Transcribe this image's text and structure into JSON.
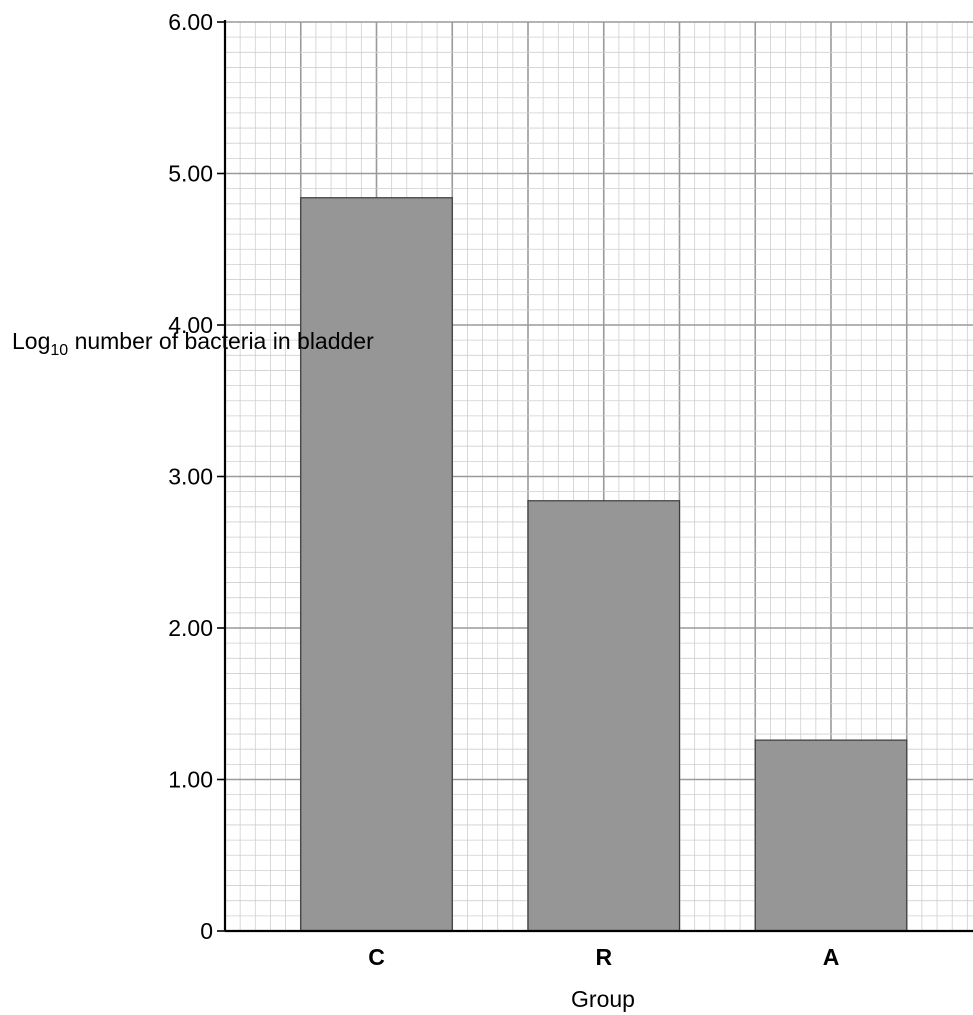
{
  "chart_data": {
    "type": "bar",
    "title": "",
    "categories": [
      "C",
      "R",
      "A"
    ],
    "values": [
      4.84,
      2.84,
      1.26
    ],
    "xlabel": "Group",
    "ylabel": {
      "base": "Log",
      "subscript": "10",
      "lines": [
        "number of",
        "bacteria in",
        "bladder"
      ]
    },
    "ylim": [
      0,
      6
    ],
    "yticks": [
      "0",
      "1.00",
      "2.00",
      "3.00",
      "4.00",
      "5.00",
      "6.00"
    ],
    "grid": true,
    "colors": {
      "bar": "#969696",
      "bar_edge": "#3a3a3a",
      "grid_major": "#9a9a9a",
      "grid_minor": "#cfcfcf"
    }
  }
}
